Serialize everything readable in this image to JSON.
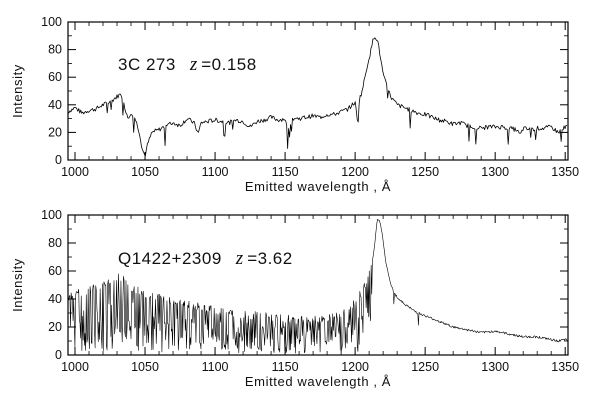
{
  "chart_data": [
    {
      "type": "line",
      "ylabel": "Intensity",
      "xlabel": "Emitted wavelength , Å",
      "xlim": [
        995,
        1352
      ],
      "ylim": [
        0,
        100
      ],
      "xticks": [
        1000,
        1050,
        1100,
        1150,
        1200,
        1250,
        1300,
        1350
      ],
      "yticks": [
        0,
        20,
        40,
        60,
        80,
        100
      ],
      "annotation": {
        "name": "3C 273",
        "z_symbol": "z",
        "z_value": "=0.158"
      },
      "series": [
        {
          "x": [
            995,
            1000,
            1005,
            1010,
            1015,
            1020,
            1025,
            1030,
            1033,
            1035,
            1038,
            1040,
            1043,
            1046,
            1048,
            1050,
            1052,
            1055,
            1060,
            1065,
            1070,
            1075,
            1080,
            1085,
            1088,
            1090,
            1095,
            1100,
            1105,
            1110,
            1115,
            1120,
            1125,
            1130,
            1135,
            1140,
            1145,
            1150,
            1152,
            1155,
            1160,
            1165,
            1170,
            1175,
            1180,
            1185,
            1190,
            1195,
            1200,
            1202,
            1203,
            1205,
            1207,
            1209,
            1211,
            1213,
            1214,
            1216,
            1218,
            1220,
            1223,
            1226,
            1230,
            1235,
            1240,
            1245,
            1250,
            1255,
            1260,
            1265,
            1270,
            1275,
            1280,
            1285,
            1290,
            1295,
            1300,
            1305,
            1310,
            1315,
            1318,
            1320,
            1325,
            1330,
            1335,
            1340,
            1345,
            1350,
            1352
          ],
          "y": [
            35,
            38,
            34,
            36,
            37,
            40,
            42,
            46,
            48,
            40,
            30,
            35,
            30,
            20,
            8,
            3,
            12,
            20,
            22,
            25,
            27,
            25,
            30,
            27,
            19,
            27,
            28,
            29,
            28,
            27,
            29,
            28,
            24,
            28,
            29,
            31,
            29,
            30,
            20,
            30,
            30,
            31,
            32,
            31,
            33,
            33,
            35,
            37,
            42,
            25,
            44,
            50,
            60,
            70,
            78,
            88,
            90,
            87,
            75,
            62,
            52,
            45,
            40,
            38,
            36,
            34,
            33,
            31,
            29,
            28,
            26,
            27,
            25,
            24,
            23,
            24,
            24,
            24,
            23,
            22,
            18,
            23,
            22,
            23,
            23,
            24,
            20,
            24,
            25
          ]
        }
      ]
    },
    {
      "type": "line",
      "ylabel": "Intensity",
      "xlabel": "Emitted wavelength , Å",
      "xlim": [
        995,
        1352
      ],
      "ylim": [
        0,
        100
      ],
      "xticks": [
        1000,
        1050,
        1100,
        1150,
        1200,
        1250,
        1300,
        1350
      ],
      "yticks": [
        0,
        20,
        40,
        60,
        80,
        100
      ],
      "annotation": {
        "name": "Q1422+2309",
        "z_symbol": "z",
        "z_value": "=3.62"
      },
      "series": [
        {
          "x": [
            995,
            1005,
            1015,
            1025,
            1030,
            1035,
            1040,
            1050,
            1060,
            1070,
            1080,
            1090,
            1100,
            1110,
            1120,
            1130,
            1140,
            1150,
            1160,
            1170,
            1180,
            1190,
            1195,
            1200,
            1205,
            1208,
            1210,
            1212,
            1214,
            1215,
            1216,
            1218,
            1220,
            1222,
            1225,
            1228,
            1232,
            1236,
            1240,
            1245,
            1250,
            1255,
            1260,
            1265,
            1270,
            1280,
            1290,
            1300,
            1310,
            1320,
            1330,
            1340,
            1345,
            1350,
            1352
          ],
          "y": [
            42,
            45,
            48,
            52,
            55,
            55,
            48,
            44,
            41,
            38,
            36,
            34,
            32,
            30,
            29,
            28,
            27,
            26,
            25,
            25,
            26,
            28,
            32,
            38,
            45,
            52,
            58,
            66,
            78,
            90,
            97,
            95,
            82,
            66,
            52,
            44,
            39,
            36,
            33,
            30,
            28,
            26,
            24,
            22,
            20,
            18,
            16,
            17,
            15,
            13,
            13,
            11,
            10,
            11,
            10
          ]
        }
      ]
    }
  ]
}
